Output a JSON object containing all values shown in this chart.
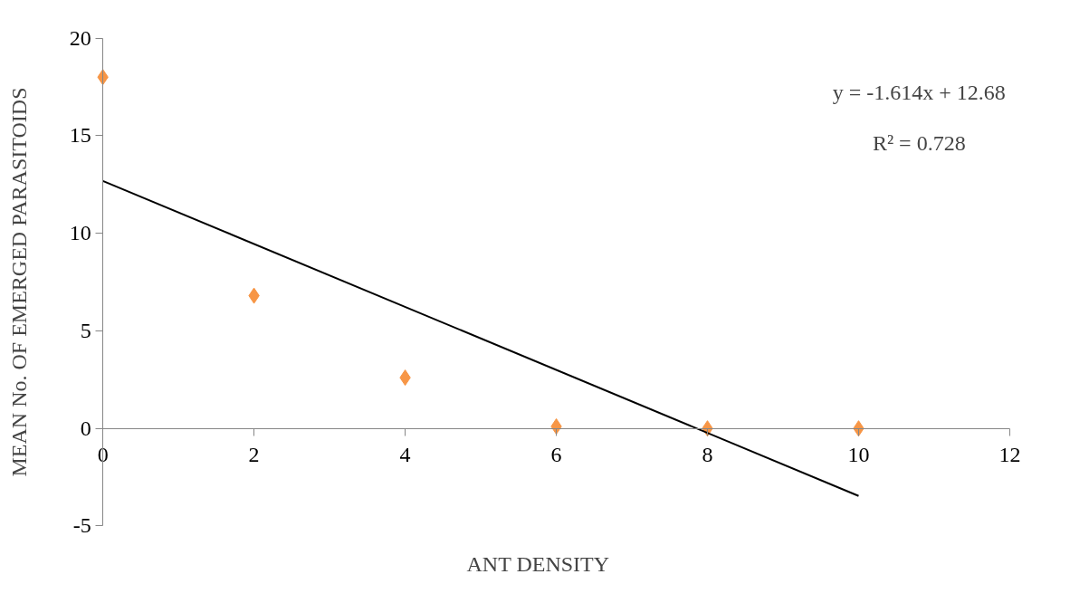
{
  "chart_data": {
    "type": "scatter",
    "xlabel": "ANT DENSITY",
    "ylabel": "MEAN No. OF EMERGED PARASITOIDS",
    "x": [
      0,
      2,
      4,
      6,
      8,
      10
    ],
    "series": [
      {
        "type": "scatter",
        "color": "#f79646",
        "marker": "diamond",
        "values": [
          18,
          6.8,
          2.6,
          0.1,
          0,
          0
        ]
      },
      {
        "type": "line",
        "color": "#000000",
        "x": [
          0,
          10
        ],
        "values": [
          12.68,
          -3.46
        ]
      }
    ],
    "xlim": [
      0,
      12
    ],
    "xticks": [
      0,
      2,
      4,
      6,
      8,
      10,
      12
    ],
    "ylim": [
      -5,
      20
    ],
    "yticks": [
      -5,
      0,
      5,
      10,
      15,
      20
    ],
    "grid": false,
    "annotations": [
      "y = -1.614x + 12.68",
      "R² = 0.728"
    ]
  }
}
